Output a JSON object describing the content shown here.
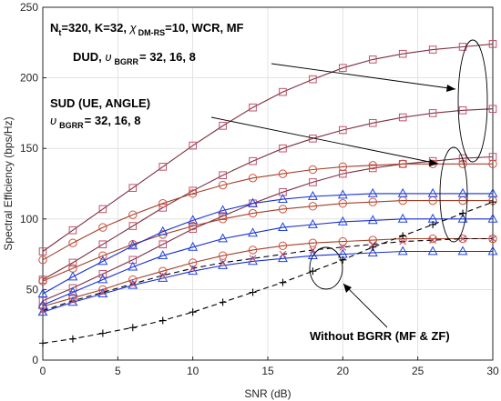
{
  "chart_data": {
    "type": "line",
    "xlabel": "SNR (dB)",
    "ylabel": "Spectral Efficiency (bps/Hz)",
    "xlim": [
      0,
      30
    ],
    "ylim": [
      0,
      250
    ],
    "xticks": [
      0,
      5,
      10,
      15,
      20,
      25,
      30
    ],
    "yticks": [
      0,
      50,
      100,
      150,
      200,
      250
    ],
    "grid": true,
    "x": [
      0,
      2,
      4,
      6,
      8,
      10,
      12,
      14,
      16,
      18,
      20,
      22,
      24,
      26,
      28,
      30
    ],
    "series": [
      {
        "marker": "square",
        "color": "#7a2f3f",
        "marker_color": "#c0506a",
        "values": [
          77,
          92,
          107,
          122,
          137,
          152,
          166,
          179,
          190,
          199,
          207,
          213,
          217,
          220,
          222,
          224
        ]
      },
      {
        "marker": "square",
        "color": "#7a2f3f",
        "marker_color": "#c0506a",
        "values": [
          57,
          69,
          82,
          95,
          108,
          120,
          131,
          141,
          150,
          157,
          163,
          168,
          172,
          175,
          177,
          178
        ]
      },
      {
        "marker": "square",
        "color": "#7a2f3f",
        "marker_color": "#c0506a",
        "values": [
          42,
          51,
          61,
          71,
          82,
          93,
          102,
          111,
          119,
          126,
          132,
          136,
          139,
          141,
          143,
          144
        ]
      },
      {
        "marker": "circle",
        "color": "#a0402a",
        "marker_color": "#d0503a",
        "values": [
          71,
          83,
          94,
          103,
          111,
          118,
          124,
          129,
          132,
          135,
          137,
          138,
          139,
          139,
          139,
          139
        ]
      },
      {
        "marker": "circle",
        "color": "#a0402a",
        "marker_color": "#d0503a",
        "values": [
          56,
          65,
          74,
          82,
          89,
          95,
          100,
          104,
          107,
          109,
          111,
          112,
          113,
          113,
          113,
          113
        ]
      },
      {
        "marker": "circle",
        "color": "#a0402a",
        "marker_color": "#d0503a",
        "values": [
          38,
          44,
          50,
          57,
          63,
          69,
          74,
          78,
          81,
          83,
          84,
          85,
          86,
          86,
          86,
          86
        ]
      },
      {
        "marker": "triangle",
        "color": "#1a2fd0",
        "marker_color": "#2244e0",
        "values": [
          47,
          59,
          70,
          81,
          91,
          99,
          106,
          111,
          114,
          116,
          117,
          118,
          118,
          118,
          118,
          118
        ]
      },
      {
        "marker": "triangle",
        "color": "#1a2fd0",
        "marker_color": "#2244e0",
        "values": [
          39,
          48,
          57,
          66,
          74,
          80,
          86,
          90,
          94,
          96,
          98,
          99,
          100,
          100,
          100,
          100
        ]
      },
      {
        "marker": "triangle",
        "color": "#1a2fd0",
        "marker_color": "#2244e0",
        "values": [
          34,
          41,
          47,
          53,
          58,
          63,
          67,
          70,
          72,
          74,
          75,
          76,
          77,
          77,
          77,
          77
        ]
      },
      {
        "marker": "plus",
        "color": "#000000",
        "marker_color": "#000000",
        "dashed": true,
        "values": [
          12,
          15,
          19,
          23,
          28,
          34,
          41,
          48,
          55,
          63,
          71,
          80,
          88,
          96,
          104,
          112
        ]
      },
      {
        "marker": "x",
        "color": "#000000",
        "marker_color": "#c0506a",
        "dashed": true,
        "values": [
          35,
          42,
          48,
          54,
          60,
          65,
          69,
          72,
          75,
          78,
          80,
          82,
          84,
          85,
          86,
          86
        ]
      }
    ],
    "annotations": {
      "params_main": "N",
      "params_sub_t": "t",
      "params_rest": "=320, K=32, ",
      "params_chi": "χ",
      "params_sub_dmrs": "DM-RS",
      "params_tail": "=10, WCR, MF",
      "dud_label": "DUD, ",
      "dud_upsilon": "υ",
      "dud_sub": "BGRR",
      "dud_values": "= 32, 16, 8",
      "sud_label": "SUD (UE, ANGLE)",
      "sud_upsilon": "υ",
      "sud_sub": "BGRR",
      "sud_values": "= 32, 16, 8",
      "without_label": "Without BGRR (MF & ZF)"
    }
  }
}
